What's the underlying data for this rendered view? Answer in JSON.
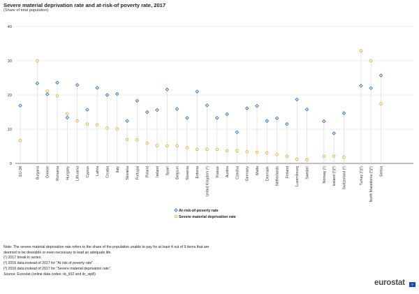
{
  "header": {
    "title": "Severe material deprivation rate and at-risk-of poverty rate, 2017",
    "subtitle": "(Share of total population)"
  },
  "chart_data": {
    "type": "scatter",
    "categories": [
      "EU-28",
      "Bulgaria",
      "Greece",
      "Romania",
      "Hungary",
      "Lithuania",
      "Cyprus",
      "Latvia",
      "Croatia",
      "Italy",
      "Slovakia",
      "Portugal",
      "Poland",
      "Ireland",
      "Spain",
      "Belgium",
      "Slovenia",
      "Estonia",
      "United Kingdom (¹)",
      "France",
      "Austria",
      "Czechia",
      "Germany",
      "Malta",
      "Denmark",
      "Netherlands",
      "Finland",
      "Luxembourg",
      "Sweden",
      "Norway (¹)",
      "Iceland (²)(³)",
      "Switzerland (²)",
      "Turkey (²)(³)",
      "North Macedonia (²)(³)",
      "Serbia"
    ],
    "group_breaks_after": [
      "EU-28",
      "Sweden",
      "Switzerland (²)"
    ],
    "series": [
      {
        "name": "At-risk-of-poverty rate",
        "color": "#2a6ebb",
        "marker": "diamond-hollow",
        "values": [
          16.9,
          23.4,
          20.2,
          23.6,
          13.4,
          22.9,
          15.7,
          22.1,
          20.0,
          20.3,
          12.4,
          18.3,
          15.0,
          15.6,
          21.6,
          15.9,
          13.3,
          21.0,
          17.0,
          13.3,
          14.4,
          9.1,
          16.1,
          16.8,
          12.4,
          13.2,
          11.5,
          18.7,
          15.8,
          12.3,
          8.8,
          14.7,
          22.7,
          22.0,
          25.7
        ]
      },
      {
        "name": "Severe material deprivation rate",
        "color": "#f0a830",
        "marker": "circle-hollow",
        "values": [
          6.7,
          30.0,
          21.1,
          19.7,
          14.5,
          12.4,
          11.5,
          11.3,
          10.3,
          10.1,
          7.0,
          6.9,
          5.9,
          5.2,
          5.1,
          5.1,
          4.6,
          4.1,
          4.1,
          4.1,
          3.7,
          3.7,
          3.4,
          3.3,
          3.1,
          2.6,
          2.1,
          1.2,
          1.1,
          2.1,
          2.1,
          1.8,
          32.9,
          30.0,
          17.4
        ]
      }
    ],
    "yticks": [
      0,
      10,
      20,
      30,
      40
    ],
    "ylim": [
      0,
      40
    ],
    "grid": true,
    "legend_position": "bottom-center"
  },
  "notes": {
    "note_1": "Note: The severe material deprivation rate refers to the share of the population unable to pay for at least 4 out of 9 items that are",
    "note_2": "deemed to be desirable or even necessary to lead an adequate life.",
    "fn1": "(¹) 2017 break in series.",
    "fn2": "(²) 2016 data instead of 2017 for \"At risk of poverty rate\".",
    "fn3": "(³) 2016 data instead of 2017 for \"Severe material deprivation rate\".",
    "source_label": "Source:",
    "source_text": " Eurostat (online data codes: ilc_li02 and ilc_sip8)"
  },
  "branding": {
    "logo_text": "eurostat",
    "flag_color": "#0e47cb"
  }
}
